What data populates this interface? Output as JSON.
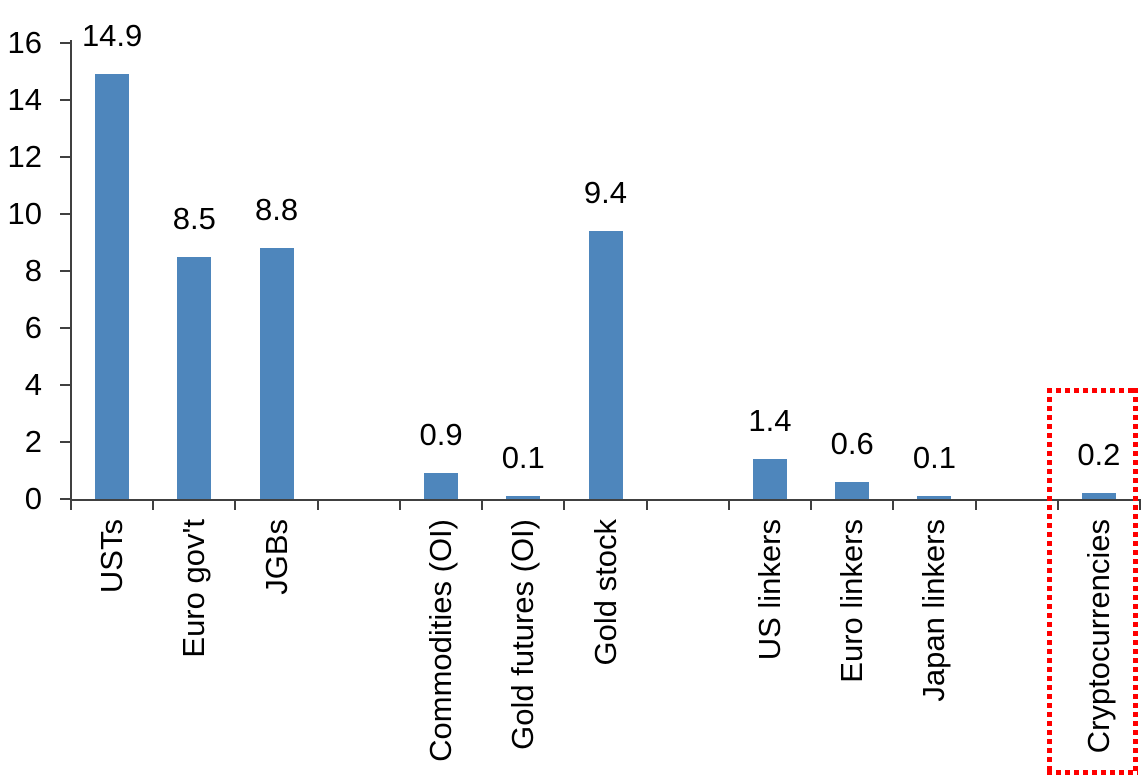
{
  "chart_data": {
    "type": "bar",
    "title": "",
    "grid": "off",
    "legend": "none",
    "y_axis": {
      "min": 0,
      "max": 16,
      "step": 2,
      "tick_labels": [
        "16",
        "14",
        "12",
        "10",
        "8",
        "6",
        "4",
        "2",
        "0"
      ]
    },
    "slot_count": 13,
    "categories": [
      "USTs",
      "Euro gov't",
      "JGBs",
      "Commodities (OI)",
      "Gold futures (OI)",
      "Gold stock",
      "US linkers",
      "Euro linkers",
      "Japan linkers",
      "Cryptocurrencies"
    ],
    "values": [
      14.9,
      8.5,
      8.8,
      0.9,
      0.1,
      9.4,
      1.4,
      0.6,
      0.1,
      0.2
    ],
    "bars": [
      {
        "label": "USTs",
        "value": 14.9,
        "display": "14.9",
        "slot": 0,
        "highlighted": false
      },
      {
        "label": "Euro gov't",
        "value": 8.5,
        "display": "8.5",
        "slot": 1,
        "highlighted": false
      },
      {
        "label": "JGBs",
        "value": 8.8,
        "display": "8.8",
        "slot": 2,
        "highlighted": false
      },
      {
        "label": "Commodities (OI)",
        "value": 0.9,
        "display": "0.9",
        "slot": 4,
        "highlighted": false
      },
      {
        "label": "Gold futures (OI)",
        "value": 0.1,
        "display": "0.1",
        "slot": 5,
        "highlighted": false
      },
      {
        "label": "Gold stock",
        "value": 9.4,
        "display": "9.4",
        "slot": 6,
        "highlighted": false
      },
      {
        "label": "US linkers",
        "value": 1.4,
        "display": "1.4",
        "slot": 8,
        "highlighted": false
      },
      {
        "label": "Euro linkers",
        "value": 0.6,
        "display": "0.6",
        "slot": 9,
        "highlighted": false
      },
      {
        "label": "Japan linkers",
        "value": 0.1,
        "display": "0.1",
        "slot": 10,
        "highlighted": false
      },
      {
        "label": "Cryptocurrencies",
        "value": 0.2,
        "display": "0.2",
        "slot": 12,
        "highlighted": true
      }
    ],
    "colors": {
      "bar": "#4E86BC",
      "axis": "#404040",
      "text": "#000000",
      "highlight_box": "#FF0000"
    },
    "annotations": [
      {
        "type": "dotted-box",
        "target": "Cryptocurrencies",
        "color": "#FF0000"
      }
    ]
  }
}
